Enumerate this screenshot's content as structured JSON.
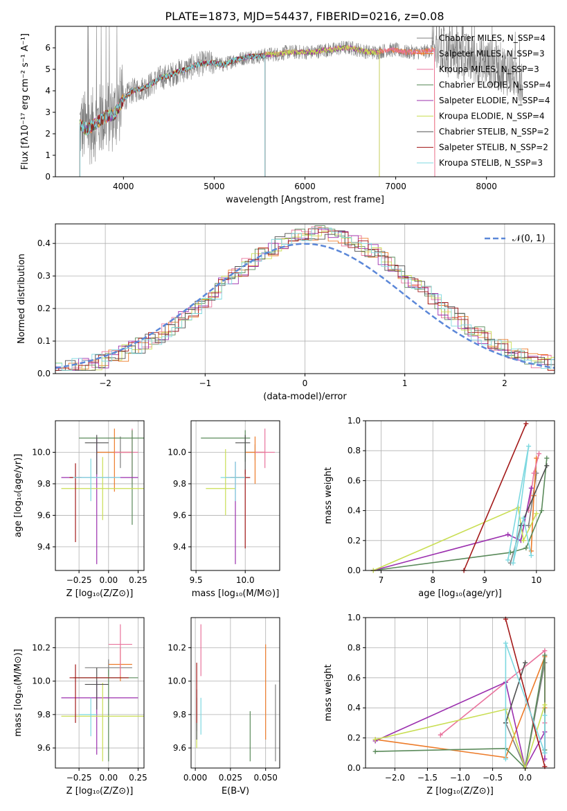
{
  "figure_title": "PLATE=1873, MJD=54437, FIBERID=0216, z=0.08",
  "colors": [
    "#7f7f7f",
    "#ed7b29",
    "#e9739d",
    "#5a8a5a",
    "#9b2fae",
    "#c9de53",
    "#4f4f4f",
    "#a31919",
    "#7dd8e0"
  ],
  "chart_data": [
    {
      "type": "line",
      "id": "spectrum",
      "title": "PLATE=1873, MJD=54437, FIBERID=0216, z=0.08",
      "xlabel": "wavelength [Angstrom, rest frame]",
      "ylabel": "Flux [fλ10⁻¹⁷ erg cm⁻² s⁻¹ A⁻¹]",
      "xlim": [
        3250,
        8750
      ],
      "ylim": [
        0,
        7
      ],
      "xticks": [
        4000,
        5000,
        6000,
        7000,
        8000
      ],
      "yticks": [
        0,
        1,
        2,
        3,
        4,
        5,
        6
      ],
      "grid": false,
      "legend_position": "upper-right",
      "legend": [
        "Chabrier MILES, N_SSP=4",
        "Salpeter MILES, N_SSP=3",
        "Kroupa MILES, N_SSP=3",
        "Chabrier ELODIE, N_SSP=4",
        "Salpeter ELODIE, N_SSP=4",
        "Kroupa ELODIE, N_SSP=4",
        "Chabrier STELIB, N_SSP=2",
        "Salpeter STELIB, N_SSP=2",
        "Kroupa STELIB, N_SSP=3"
      ],
      "continuum": {
        "x": [
          3520,
          3600,
          3700,
          3800,
          3900,
          4000,
          4100,
          4200,
          4300,
          4400,
          4500,
          4600,
          4700,
          4800,
          4900,
          5000,
          5100,
          5200,
          5300,
          5400,
          5500,
          5600,
          5700,
          5800,
          5900,
          6000,
          6100,
          6200,
          6300,
          6400,
          6500,
          6600,
          6700,
          6800,
          6900,
          7000,
          7100,
          7200,
          7300,
          7400,
          7500,
          7600,
          7700,
          7800,
          7900,
          8000,
          8100,
          8200,
          8300,
          8400
        ],
        "y": [
          2.4,
          2.2,
          2.5,
          2.8,
          2.9,
          3.6,
          4.0,
          4.1,
          4.3,
          4.6,
          4.7,
          4.9,
          5.0,
          5.2,
          5.3,
          5.3,
          5.2,
          5.4,
          5.5,
          5.6,
          5.6,
          5.7,
          5.7,
          5.8,
          5.8,
          5.8,
          5.8,
          5.9,
          5.9,
          6.0,
          6.0,
          5.9,
          5.8,
          5.8,
          5.9,
          5.9,
          5.8,
          5.8,
          5.8,
          5.9,
          5.8,
          5.7,
          5.6,
          5.5,
          5.4,
          5.3,
          5.2,
          5.0,
          4.8,
          4.5
        ]
      },
      "data_range": [
        3520,
        8400
      ],
      "model_ranges": [
        [
          3520,
          7430
        ],
        [
          3520,
          7430
        ],
        [
          3520,
          7430
        ],
        [
          3520,
          6820
        ],
        [
          3520,
          6820
        ],
        [
          3520,
          6820
        ],
        [
          3520,
          5560
        ],
        [
          3520,
          5560
        ],
        [
          3520,
          5560
        ]
      ]
    },
    {
      "type": "line",
      "id": "residuals",
      "xlabel": "(data-model)/error",
      "ylabel": "Normed distribution",
      "xlim": [
        -2.5,
        2.5
      ],
      "ylim": [
        0,
        0.46
      ],
      "xticks": [
        -2,
        -1,
        0,
        1,
        2
      ],
      "yticks": [
        0.0,
        0.1,
        0.2,
        0.3,
        0.4
      ],
      "grid": true,
      "legend_position": "upper-right",
      "gaussian_label": "𝒩(0, 1)",
      "gaussian": {
        "mu": 0,
        "sigma": 1
      }
    },
    {
      "type": "scatter",
      "id": "age_vs_Z",
      "xlabel": "Z [log₁₀(Z/Z⊙)]",
      "ylabel": "age  [log₁₀(age/yr)]",
      "xlim": [
        -0.45,
        0.3
      ],
      "ylim": [
        9.25,
        10.2
      ],
      "xticks": [
        -0.25,
        0.0,
        0.25
      ],
      "xticklabels": [
        "−0.25",
        "0.00",
        "0.25"
      ],
      "yticks": [
        9.4,
        9.6,
        9.8,
        10.0
      ],
      "grid": true,
      "points": [
        {
          "x": 0.1,
          "y": 10.0,
          "xerr": [
            0.2,
            0.1
          ],
          "yerr": [
            0.1,
            0.1
          ]
        },
        {
          "x": 0.05,
          "y": 10.0,
          "xerr": [
            0.15,
            0.15
          ],
          "yerr": [
            0.25,
            0.15
          ]
        },
        {
          "x": 0.2,
          "y": 10.0,
          "xerr": [
            0.15,
            0.05
          ],
          "yerr": [
            0.2,
            0.15
          ]
        },
        {
          "x": 0.2,
          "y": 10.09,
          "xerr": [
            0.45,
            0.1
          ],
          "yerr": [
            0.55,
            0.05
          ]
        },
        {
          "x": -0.1,
          "y": 9.84,
          "xerr": [
            0.3,
            0.35
          ],
          "yerr": [
            0.55,
            0.25
          ]
        },
        {
          "x": -0.05,
          "y": 9.77,
          "xerr": [
            0.35,
            0.35
          ],
          "yerr": [
            0.2,
            0.2
          ]
        },
        {
          "x": -0.1,
          "y": 10.06,
          "xerr": [
            0.1,
            0.1
          ],
          "yerr": [
            0.2,
            0.05
          ]
        },
        {
          "x": -0.28,
          "y": 9.84,
          "xerr": [
            0.05,
            0.05
          ],
          "yerr": [
            0.41,
            0.09
          ]
        },
        {
          "x": -0.15,
          "y": 9.84,
          "xerr": [
            0.15,
            0.25
          ],
          "yerr": [
            0.15,
            0.12
          ]
        }
      ]
    },
    {
      "type": "scatter",
      "id": "age_vs_mass",
      "xlabel": "mass [log₁₀(M/M⊙)]",
      "ylabel": "",
      "xlim": [
        9.45,
        10.35
      ],
      "ylim": [
        9.25,
        10.2
      ],
      "xticks": [
        9.5,
        10.0
      ],
      "xticklabels": [
        "9.5",
        "10.0"
      ],
      "yticks": [
        9.4,
        9.6,
        9.8,
        10.0
      ],
      "grid": true,
      "points": [
        {
          "x": 10.1,
          "y": 10.0,
          "xerr": [
            0.1,
            0.1
          ],
          "yerr": [
            0.05,
            0.05
          ]
        },
        {
          "x": 10.1,
          "y": 10.0,
          "xerr": [
            0.1,
            0.1
          ],
          "yerr": [
            0.2,
            0.1
          ]
        },
        {
          "x": 10.2,
          "y": 10.0,
          "xerr": [
            0.1,
            0.1
          ],
          "yerr": [
            0.1,
            0.15
          ]
        },
        {
          "x": 10.0,
          "y": 10.09,
          "xerr": [
            0.45,
            0.05
          ],
          "yerr": [
            0.15,
            0.05
          ]
        },
        {
          "x": 9.9,
          "y": 9.84,
          "xerr": [
            0.1,
            0.1
          ],
          "yerr": [
            0.55,
            0.1
          ]
        },
        {
          "x": 9.8,
          "y": 9.77,
          "xerr": [
            0.2,
            0.1
          ],
          "yerr": [
            0.17,
            0.25
          ]
        },
        {
          "x": 10.0,
          "y": 10.06,
          "xerr": [
            0.1,
            0.05
          ],
          "yerr": [
            0.2,
            0.05
          ]
        },
        {
          "x": 10.0,
          "y": 9.84,
          "xerr": [
            0.15,
            0.05
          ],
          "yerr": [
            0.45,
            0.05
          ]
        },
        {
          "x": 9.9,
          "y": 9.84,
          "xerr": [
            0.15,
            0.1
          ],
          "yerr": [
            0.15,
            0.1
          ]
        }
      ]
    },
    {
      "type": "line",
      "id": "weight_vs_age",
      "xlabel": "age  [log₁₀(age/yr)]",
      "ylabel": "mass weight",
      "xlim": [
        6.7,
        10.35
      ],
      "ylim": [
        0,
        1
      ],
      "xticks": [
        7,
        8,
        9,
        10
      ],
      "yticks": [
        0.0,
        0.2,
        0.4,
        0.6,
        0.8,
        1.0
      ],
      "grid": true,
      "series": [
        {
          "x": [
            9.5,
            9.7,
            9.85,
            10.0
          ],
          "y": [
            0.05,
            0.3,
            0.3,
            0.65
          ]
        },
        {
          "x": [
            9.9,
            9.95,
            10.0
          ],
          "y": [
            0.13,
            0.5,
            0.75
          ]
        },
        {
          "x": [
            9.85,
            9.95,
            10.05
          ],
          "y": [
            0.4,
            0.65,
            0.78
          ]
        },
        {
          "x": [
            6.85,
            9.5,
            9.8,
            10.1,
            10.2
          ],
          "y": [
            0.0,
            0.12,
            0.15,
            0.4,
            0.75
          ]
        },
        {
          "x": [
            6.85,
            9.45,
            9.7,
            9.9
          ],
          "y": [
            0.0,
            0.24,
            0.2,
            0.55
          ]
        },
        {
          "x": [
            6.85,
            9.65,
            9.75,
            10.0
          ],
          "y": [
            0.0,
            0.42,
            0.2,
            0.38
          ]
        },
        {
          "x": [
            9.7,
            10.2
          ],
          "y": [
            0.3,
            0.7
          ]
        },
        {
          "x": [
            8.6,
            9.8
          ],
          "y": [
            0.0,
            0.98
          ]
        },
        {
          "x": [
            9.45,
            9.85,
            9.55,
            9.75,
            9.9
          ],
          "y": [
            0.07,
            0.83,
            0.05,
            0.35,
            0.1
          ]
        }
      ]
    },
    {
      "type": "scatter",
      "id": "mass_vs_Z",
      "xlabel": "Z [log₁₀(Z/Z⊙)]",
      "ylabel": "mass [log₁₀(M/M⊙)]",
      "xlim": [
        -0.45,
        0.3
      ],
      "ylim": [
        9.48,
        10.38
      ],
      "xticks": [
        -0.25,
        0.0,
        0.25
      ],
      "xticklabels": [
        "−0.25",
        "0.00",
        "0.25"
      ],
      "yticks": [
        9.6,
        9.8,
        10.0,
        10.2
      ],
      "grid": true,
      "points": [
        {
          "x": 0.0,
          "y": 10.08,
          "xerr": [
            0.2,
            0.2
          ],
          "yerr": [
            0.05,
            0.05
          ]
        },
        {
          "x": 0.1,
          "y": 10.1,
          "xerr": [
            0.1,
            0.1
          ],
          "yerr": [
            0.1,
            0.1
          ]
        },
        {
          "x": 0.1,
          "y": 10.22,
          "xerr": [
            0.1,
            0.1
          ],
          "yerr": [
            0.19,
            0.12
          ]
        },
        {
          "x": 0.0,
          "y": 10.02,
          "xerr": [
            0.3,
            0.25
          ],
          "yerr": [
            0.5,
            0.05
          ]
        },
        {
          "x": -0.1,
          "y": 9.9,
          "xerr": [
            0.3,
            0.35
          ],
          "yerr": [
            0.34,
            0.1
          ]
        },
        {
          "x": -0.05,
          "y": 9.79,
          "xerr": [
            0.35,
            0.35
          ],
          "yerr": [
            0.27,
            0.2
          ]
        },
        {
          "x": -0.1,
          "y": 9.98,
          "xerr": [
            0.1,
            0.1
          ],
          "yerr": [
            0.15,
            0.1
          ]
        },
        {
          "x": -0.28,
          "y": 10.02,
          "xerr": [
            0.05,
            0.45
          ],
          "yerr": [
            0.27,
            0.08
          ]
        },
        {
          "x": -0.15,
          "y": 9.8,
          "xerr": [
            0.1,
            0.05
          ],
          "yerr": [
            0.13,
            0.1
          ]
        }
      ]
    },
    {
      "type": "scatter",
      "id": "mass_vs_EBV",
      "xlabel": "E(B-V)",
      "ylabel": "",
      "xlim": [
        -0.003,
        0.06
      ],
      "ylim": [
        9.48,
        10.38
      ],
      "xticks": [
        0.0,
        0.025,
        0.05
      ],
      "xticklabels": [
        "0.000",
        "0.025",
        "0.050"
      ],
      "yticks": [
        9.6,
        9.8,
        10.0,
        10.2
      ],
      "grid": true,
      "points": [
        {
          "x": 0.057,
          "y": 9.75,
          "xerr": [
            0,
            0
          ],
          "yerr": [
            0.23,
            0.23
          ]
        },
        {
          "x": 0.05,
          "y": 9.95,
          "xerr": [
            0,
            0
          ],
          "yerr": [
            0.3,
            0.27
          ]
        },
        {
          "x": 0.004,
          "y": 10.18,
          "xerr": [
            0,
            0
          ],
          "yerr": [
            0.15,
            0.16
          ]
        },
        {
          "x": 0.039,
          "y": 9.75,
          "xerr": [
            0,
            0
          ],
          "yerr": [
            0.23,
            0.07
          ]
        },
        {
          "x": 0.001,
          "y": 9.8,
          "xerr": [
            0,
            0
          ],
          "yerr": [
            0.1,
            0.1
          ]
        },
        {
          "x": 0.001,
          "y": 9.8,
          "xerr": [
            0,
            0
          ],
          "yerr": [
            0.2,
            0.1
          ]
        },
        {
          "x": 0.001,
          "y": 9.8,
          "xerr": [
            0,
            0
          ],
          "yerr": [
            0.15,
            0.15
          ]
        },
        {
          "x": 0.001,
          "y": 9.93,
          "xerr": [
            0,
            0
          ],
          "yerr": [
            0.18,
            0.18
          ]
        },
        {
          "x": 0.004,
          "y": 9.78,
          "xerr": [
            0,
            0
          ],
          "yerr": [
            0.1,
            0.12
          ]
        }
      ]
    },
    {
      "type": "line",
      "id": "weight_vs_Z",
      "xlabel": "Z [log₁₀(Z/Z⊙)]",
      "ylabel": "mass weight",
      "xlim": [
        -2.45,
        0.45
      ],
      "ylim": [
        0,
        1
      ],
      "xticks": [
        -2.0,
        -1.5,
        -1.0,
        -0.5,
        0.0
      ],
      "xticklabels": [
        "−2.0",
        "−1.5",
        "−1.0",
        "−0.5",
        "0.0"
      ],
      "yticks": [
        0.0,
        0.2,
        0.4,
        0.6,
        0.8,
        1.0
      ],
      "grid": true,
      "series": [
        {
          "x": [
            -0.3,
            0.0,
            0.3,
            0.3
          ],
          "y": [
            0.3,
            0.0,
            0.7,
            0.1
          ]
        },
        {
          "x": [
            -2.3,
            -0.3,
            0.3,
            0.3
          ],
          "y": [
            0.19,
            0.07,
            0.74,
            0.4
          ]
        },
        {
          "x": [
            -1.3,
            -0.3,
            0.3,
            0.3
          ],
          "y": [
            0.22,
            0.57,
            0.78,
            0.3
          ]
        },
        {
          "x": [
            -2.3,
            -0.3,
            0.0,
            0.3,
            0.3
          ],
          "y": [
            0.11,
            0.13,
            0.0,
            0.75,
            0.12
          ]
        },
        {
          "x": [
            -2.3,
            -0.3,
            0.0,
            0.3,
            0.3
          ],
          "y": [
            0.18,
            0.57,
            0.0,
            0.24,
            0.06
          ]
        },
        {
          "x": [
            -2.3,
            -0.3,
            0.0,
            0.3
          ],
          "y": [
            0.19,
            0.39,
            0.0,
            0.42
          ]
        },
        {
          "x": [
            -0.3,
            0.0
          ],
          "y": [
            0.3,
            0.7
          ]
        },
        {
          "x": [
            -0.3,
            0.3
          ],
          "y": [
            0.99,
            0.01
          ]
        },
        {
          "x": [
            -0.3,
            -0.3,
            0.3,
            0.3
          ],
          "y": [
            0.06,
            0.83,
            0.1,
            0.35
          ]
        }
      ]
    }
  ]
}
